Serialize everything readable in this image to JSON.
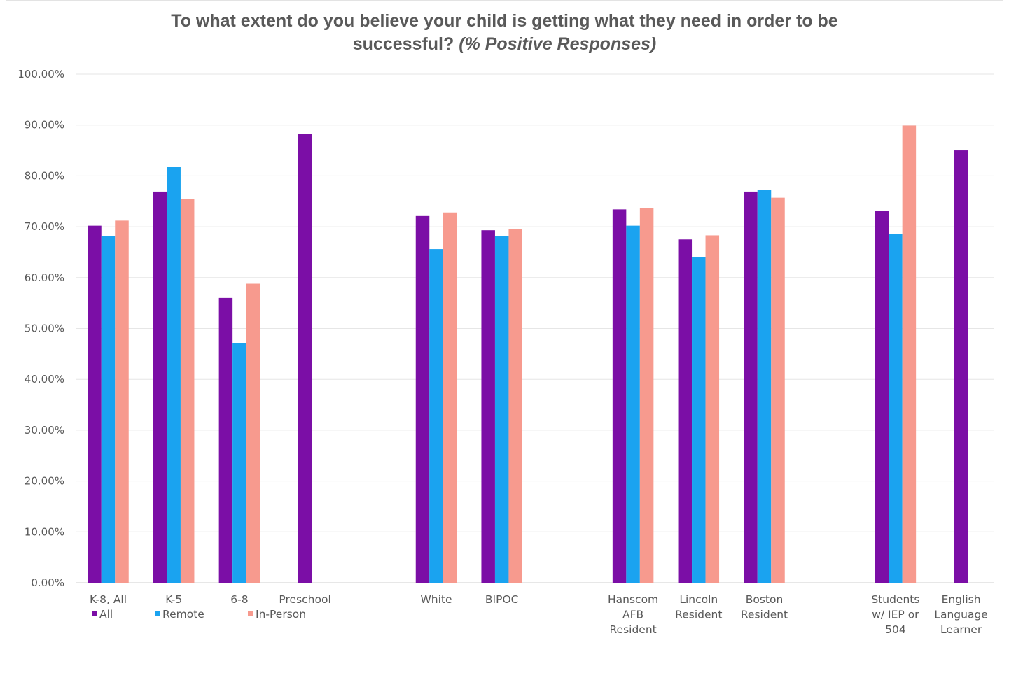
{
  "chart_data": {
    "type": "bar",
    "title": {
      "line1": "To what extent do you believe your child is getting what they need in order to be",
      "line2_main": "successful?",
      "line2_italic": "(% Positive Responses)"
    },
    "xlabel": "",
    "ylabel": "",
    "ylim": [
      0,
      100
    ],
    "y_ticks": [
      "0.00%",
      "10.00%",
      "20.00%",
      "30.00%",
      "40.00%",
      "50.00%",
      "60.00%",
      "70.00%",
      "80.00%",
      "90.00%",
      "100.00%"
    ],
    "grid": true,
    "legend_position": "bottom-left",
    "categories": [
      {
        "label": [
          "K-8, All"
        ],
        "slot": 0
      },
      {
        "label": [
          "K-5"
        ],
        "slot": 1
      },
      {
        "label": [
          "6-8"
        ],
        "slot": 2
      },
      {
        "label": [
          "Preschool"
        ],
        "slot": 3
      },
      {
        "label": [
          "White"
        ],
        "slot": 5
      },
      {
        "label": [
          "BIPOC"
        ],
        "slot": 6
      },
      {
        "label": [
          "Hanscom",
          "AFB",
          "Resident"
        ],
        "slot": 8
      },
      {
        "label": [
          "Lincoln",
          "Resident"
        ],
        "slot": 9
      },
      {
        "label": [
          "Boston",
          "Resident"
        ],
        "slot": 10
      },
      {
        "label": [
          "Students",
          "w/ IEP or",
          "504"
        ],
        "slot": 12
      },
      {
        "label": [
          "English",
          "Language",
          "Learner"
        ],
        "slot": 13
      }
    ],
    "series": [
      {
        "name": "All",
        "color": "#7b0ea6",
        "values": [
          70.2,
          76.9,
          56.0,
          88.2,
          72.1,
          69.3,
          73.4,
          67.5,
          76.9,
          73.1,
          85.0
        ]
      },
      {
        "name": "Remote",
        "color": "#1aa3f0",
        "values": [
          68.1,
          81.8,
          47.1,
          null,
          65.6,
          68.2,
          70.2,
          64.0,
          77.2,
          68.5,
          null
        ]
      },
      {
        "name": "In-Person",
        "color": "#f79a8e",
        "values": [
          71.2,
          75.5,
          58.8,
          null,
          72.8,
          69.6,
          73.7,
          68.3,
          75.7,
          89.9,
          null
        ]
      }
    ]
  }
}
